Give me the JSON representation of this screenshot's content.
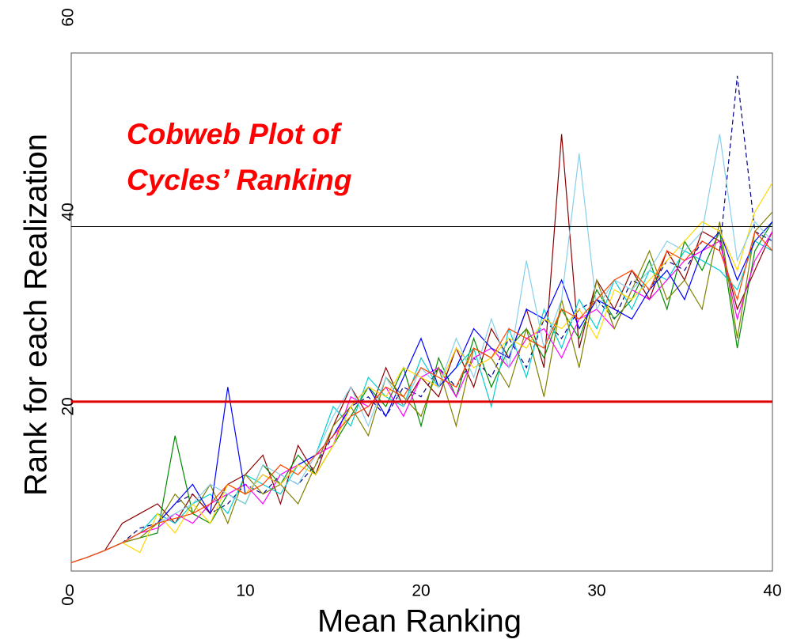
{
  "chart_data": {
    "type": "line",
    "xlabel": "Mean Ranking",
    "ylabel": "Rank for each Realization",
    "annotation": [
      "Cobweb Plot of",
      "Cycles’ Ranking"
    ],
    "xlim": [
      0,
      40
    ],
    "ylim": [
      0,
      60
    ],
    "xticks": [
      0,
      10,
      20,
      30,
      40
    ],
    "yticks": [
      0,
      20,
      40,
      60
    ],
    "reference_lines": [
      {
        "value": 38.5,
        "color": "#000000"
      },
      {
        "value": 20.5,
        "color": "#e00000"
      }
    ],
    "x": [
      0,
      1,
      2,
      3,
      4,
      5,
      6,
      7,
      8,
      9,
      10,
      11,
      12,
      13,
      14,
      15,
      16,
      17,
      18,
      19,
      20,
      21,
      22,
      23,
      24,
      25,
      26,
      27,
      28,
      29,
      30,
      31,
      32,
      33,
      34,
      35,
      36,
      37,
      38,
      39,
      40
    ],
    "series": [
      {
        "color": "#00008b",
        "dashed": true,
        "values": [
          3.9,
          4.5,
          5.2,
          6,
          7.5,
          8,
          10,
          11,
          9,
          10,
          12,
          11,
          13,
          12,
          14,
          17,
          20,
          21,
          19,
          22,
          21,
          24,
          22,
          25,
          23,
          27,
          24,
          29,
          27,
          30,
          31,
          29,
          33,
          32,
          35,
          34,
          37,
          36,
          54,
          38,
          37
        ]
      },
      {
        "color": "#8b0000",
        "values": [
          3.9,
          4.5,
          5.2,
          8,
          9,
          10,
          8,
          11,
          9,
          12,
          13,
          15,
          10,
          16,
          13,
          18,
          22,
          19,
          24,
          20,
          23,
          21,
          26,
          22,
          28,
          25,
          30,
          24,
          48,
          26,
          33,
          30,
          34,
          31,
          36,
          33,
          38,
          37,
          30,
          34,
          38
        ]
      },
      {
        "color": "#008b00",
        "values": [
          3.9,
          4.5,
          5.2,
          6,
          6.5,
          7,
          17,
          9,
          8,
          11,
          10,
          14,
          12,
          15,
          13,
          16,
          19,
          22,
          20,
          24,
          18,
          25,
          21,
          27,
          22,
          26,
          28,
          25,
          30,
          27,
          32,
          29,
          31,
          35,
          30,
          37,
          34,
          38,
          26,
          36,
          39
        ]
      },
      {
        "color": "#00ced1",
        "values": [
          3.9,
          4.5,
          5.2,
          6,
          7,
          9,
          8,
          10,
          11,
          9,
          13,
          12,
          11,
          14,
          15,
          20,
          18,
          23,
          21,
          20,
          25,
          22,
          24,
          26,
          20,
          28,
          23,
          30,
          26,
          31,
          28,
          33,
          30,
          34,
          33,
          36,
          35,
          34,
          32,
          37,
          36
        ]
      },
      {
        "color": "#ff00ff",
        "values": [
          3.9,
          4.5,
          5.2,
          6,
          7,
          7.5,
          9,
          8,
          10,
          11,
          12,
          10,
          13,
          14,
          15,
          16,
          21,
          20,
          22,
          19,
          23,
          24,
          21,
          25,
          26,
          24,
          27,
          28,
          25,
          29,
          30,
          28,
          32,
          31,
          33,
          35,
          36,
          37,
          29,
          35,
          38
        ]
      },
      {
        "color": "#808000",
        "values": [
          3.9,
          4.5,
          5.2,
          6,
          6.5,
          8,
          11,
          9,
          12,
          8,
          13,
          11,
          12,
          10,
          14,
          18,
          20,
          17,
          23,
          21,
          19,
          24,
          18,
          26,
          25,
          22,
          28,
          21,
          31,
          24,
          33,
          28,
          32,
          36,
          31,
          33,
          30,
          39,
          27,
          38,
          40
        ]
      },
      {
        "color": "#0000ff",
        "values": [
          3.9,
          4.5,
          5.2,
          6,
          7,
          8,
          10,
          12,
          9,
          22,
          11,
          13,
          12,
          14,
          15,
          17,
          20,
          22,
          19,
          23,
          27,
          22,
          24,
          28,
          26,
          25,
          30,
          29,
          33,
          28,
          31,
          30,
          29,
          32,
          34,
          31,
          36,
          38,
          33,
          37,
          39
        ]
      },
      {
        "color": "#ffd700",
        "values": [
          3.9,
          4.5,
          5.2,
          6,
          5,
          9,
          7,
          10,
          8,
          12,
          11,
          13,
          12,
          14,
          13,
          16,
          20,
          22,
          21,
          24,
          23,
          22,
          26,
          24,
          25,
          27,
          26,
          29,
          28,
          30,
          27,
          32,
          31,
          33,
          35,
          37,
          39,
          38,
          34,
          40,
          43
        ]
      },
      {
        "color": "#87ceeb",
        "values": [
          3.9,
          4.5,
          5.2,
          6,
          7,
          8,
          9,
          10,
          12,
          11,
          10,
          14,
          13,
          12,
          15,
          19,
          22,
          18,
          23,
          20,
          24,
          22,
          27,
          23,
          29,
          24,
          35,
          26,
          31,
          46,
          30,
          33,
          32,
          34,
          37,
          36,
          38,
          48,
          35,
          39,
          37
        ]
      },
      {
        "color": "#ff4500",
        "values": [
          3.9,
          4.5,
          5.2,
          6,
          7,
          8,
          8.5,
          9,
          10,
          12,
          11,
          12,
          14,
          13,
          15,
          17,
          19,
          20,
          22,
          21,
          24,
          23,
          22,
          26,
          25,
          28,
          27,
          26,
          30,
          29,
          31,
          33,
          34,
          32,
          36,
          35,
          37,
          36,
          31,
          38,
          36
        ]
      }
    ]
  }
}
